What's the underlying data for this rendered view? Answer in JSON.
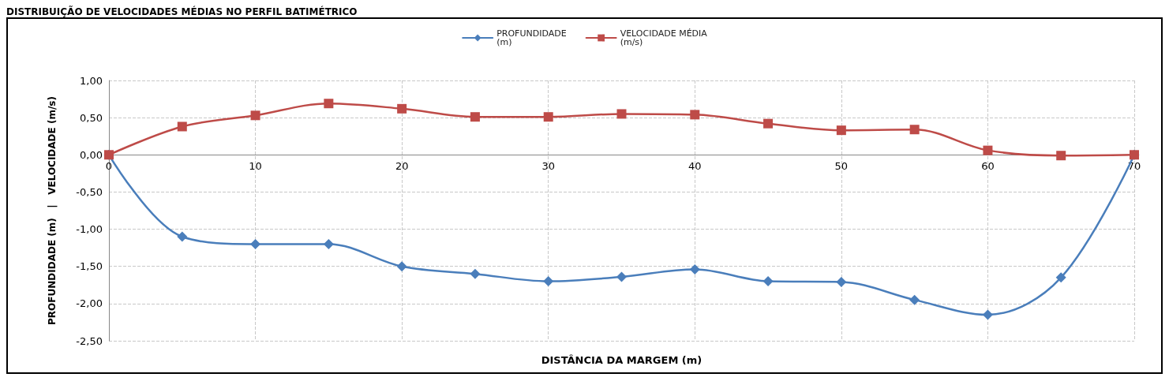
{
  "chart_data": {
    "type": "line",
    "title": "DISTRIBUIÇÃO DE VELOCIDADES MÉDIAS NO PERFIL BATIMÉTRICO",
    "xlabel": "DISTÂNCIA DA MARGEM (m)",
    "ylabel": "PROFUNDIDADE (m)   |   VELOCIDADE (m/s)",
    "x": [
      0,
      5,
      10,
      15,
      20,
      25,
      30,
      35,
      40,
      45,
      50,
      55,
      60,
      65,
      70
    ],
    "series": [
      {
        "name": "PROFUNDIDADE (m)",
        "color": "#4a7ebb",
        "marker": "diamond",
        "values": [
          0,
          -1.1,
          -1.2,
          -1.2,
          -1.5,
          -1.6,
          -1.7,
          -1.64,
          -1.54,
          -1.7,
          -1.71,
          -1.95,
          -2.15,
          -1.65,
          0
        ]
      },
      {
        "name": "VELOCIDADE MÉDIA (m/s)",
        "color": "#be4b48",
        "marker": "square",
        "values": [
          0,
          0.38,
          0.53,
          0.69,
          0.62,
          0.51,
          0.51,
          0.55,
          0.54,
          0.42,
          0.33,
          0.34,
          0.06,
          -0.01,
          0
        ]
      }
    ],
    "xlim": [
      0,
      70
    ],
    "xticks": [
      0,
      10,
      20,
      30,
      40,
      50,
      60,
      70
    ],
    "ylim": [
      -2.5,
      1
    ],
    "yticks": [
      {
        "value": -2.5,
        "label": "-2,50"
      },
      {
        "value": -2,
        "label": "-2,00"
      },
      {
        "value": -1.5,
        "label": "-1,50"
      },
      {
        "value": -1,
        "label": "-1,00"
      },
      {
        "value": -0.5,
        "label": "-0,50"
      },
      {
        "value": 0,
        "label": "0,00"
      },
      {
        "value": 0.5,
        "label": "0,50"
      },
      {
        "value": 1,
        "label": "1,00"
      }
    ],
    "grid": true,
    "legend": "top",
    "line_style": "solid"
  }
}
